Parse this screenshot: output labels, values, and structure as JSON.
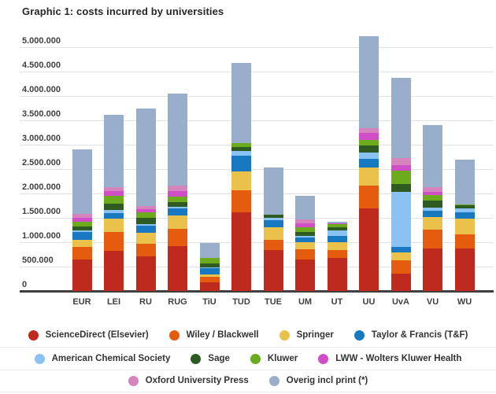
{
  "title": "Graphic 1: costs incurred by universities",
  "chart_data": {
    "type": "bar",
    "stacked": true,
    "title": "Graphic 1: costs incurred by universities",
    "xlabel": "",
    "ylabel": "",
    "grid": true,
    "legend_position": "bottom",
    "ylim": [
      0,
      5250000
    ],
    "ytick_interval": 500000,
    "ytick_labels": [
      "0",
      "500.000",
      "1.000.000",
      "1.500.000",
      "2.000.000",
      "2.500.000",
      "3.000.000",
      "3.500.000",
      "4.000.000",
      "4.500.000",
      "5.000.000"
    ],
    "categories": [
      "EUR",
      "LEI",
      "RU",
      "RUG",
      "TiU",
      "TUD",
      "TUE",
      "UM",
      "UT",
      "UU",
      "UvA",
      "VU",
      "WU"
    ],
    "series": [
      {
        "name": "ScienceDirect (Elsevier)",
        "color": "#bf2a1e",
        "values": [
          640000,
          815000,
          705000,
          920000,
          180000,
          1620000,
          840000,
          650000,
          670000,
          1690000,
          355000,
          870000,
          870000
        ]
      },
      {
        "name": "Wiley / Blackwell",
        "color": "#e65c0f",
        "values": [
          260000,
          390000,
          270000,
          350000,
          110000,
          440000,
          215000,
          205000,
          170000,
          475000,
          270000,
          380000,
          295000
        ]
      },
      {
        "name": "Springer",
        "color": "#e9c14b",
        "values": [
          150000,
          280000,
          215000,
          270000,
          55000,
          390000,
          245000,
          145000,
          160000,
          360000,
          160000,
          270000,
          325000
        ]
      },
      {
        "name": "Taylor & Francis (T&F)",
        "color": "#1879c0",
        "values": [
          160000,
          105000,
          155000,
          160000,
          115000,
          325000,
          150000,
          90000,
          125000,
          180000,
          120000,
          125000,
          120000
        ]
      },
      {
        "name": "American Chemical Society",
        "color": "#8ac2f4",
        "values": [
          25000,
          75000,
          30000,
          25000,
          25000,
          90000,
          55000,
          45000,
          110000,
          125000,
          1130000,
          65000,
          85000
        ]
      },
      {
        "name": "Sage",
        "color": "#2d5b21",
        "values": [
          90000,
          125000,
          125000,
          100000,
          80000,
          85000,
          55000,
          80000,
          65000,
          160000,
          160000,
          150000,
          55000
        ]
      },
      {
        "name": "Kluwer",
        "color": "#6cab1e",
        "values": [
          100000,
          160000,
          120000,
          115000,
          110000,
          90000,
          0,
          95000,
          75000,
          110000,
          270000,
          110000,
          20000
        ]
      },
      {
        "name": "LWW - Wolters Kluwer Health",
        "color": "#d14fc6",
        "values": [
          80000,
          95000,
          60000,
          115000,
          0,
          0,
          0,
          80000,
          20000,
          140000,
          110000,
          65000,
          0
        ]
      },
      {
        "name": "Oxford University Press",
        "color": "#d584be",
        "values": [
          80000,
          90000,
          60000,
          100000,
          0,
          0,
          0,
          75000,
          0,
          100000,
          150000,
          90000,
          0
        ]
      },
      {
        "name": "Overig incl print (*)",
        "color": "#99aecb",
        "values": [
          1320000,
          1480000,
          2000000,
          1890000,
          310000,
          1630000,
          970000,
          490000,
          30000,
          1880000,
          1650000,
          1280000,
          920000
        ]
      }
    ],
    "legend_rows": [
      [
        0,
        1,
        2,
        3
      ],
      [
        4,
        5,
        6,
        7
      ],
      [
        8,
        9
      ]
    ]
  }
}
